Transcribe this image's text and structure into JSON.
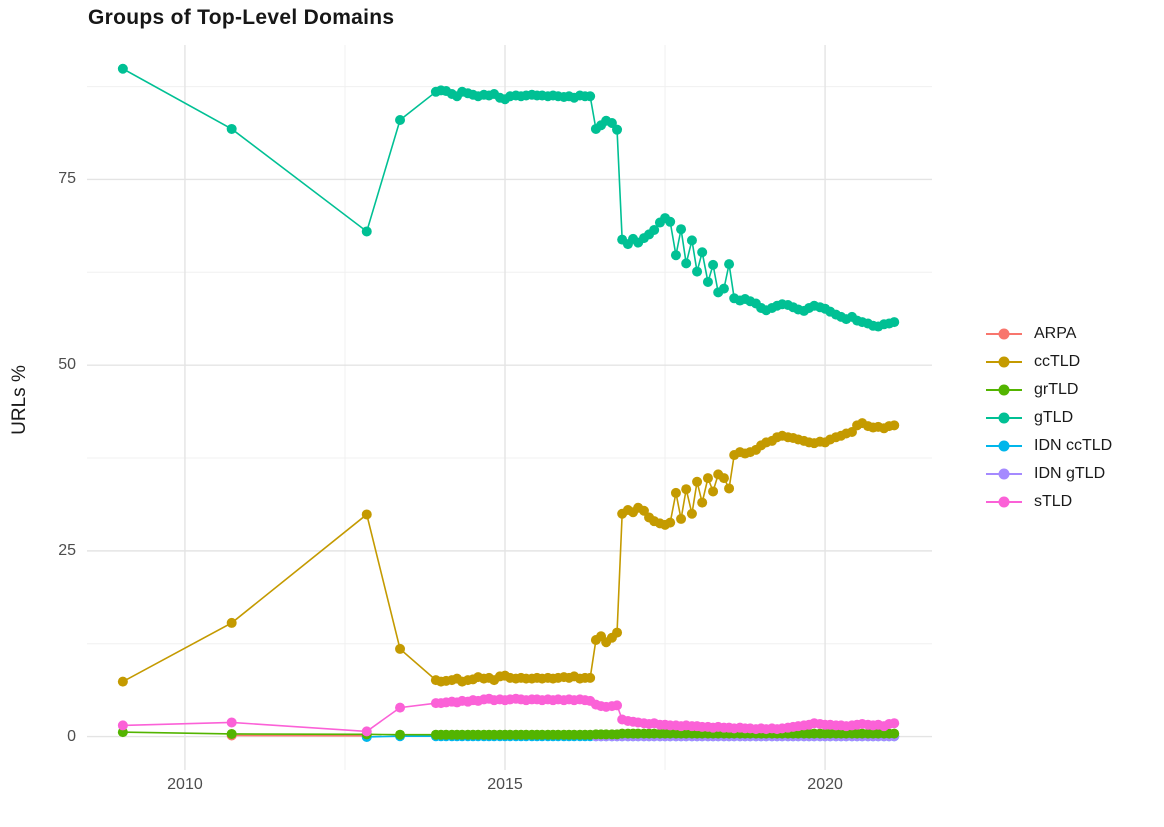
{
  "chart_data": {
    "type": "line",
    "title": "Groups of Top-Level Domains",
    "xlabel": "",
    "ylabel": "URLs %",
    "grid": true,
    "legend_position": "right",
    "x_axis": {
      "ticks": [
        2010,
        2015,
        2020
      ],
      "tick_labels": [
        "2010",
        "2015",
        "2020"
      ],
      "minor_ticks": [
        2012.5,
        2017.5
      ],
      "range": [
        2008.47,
        2021.67
      ]
    },
    "y_axis": {
      "ticks": [
        0,
        25,
        50,
        75
      ],
      "tick_labels": [
        "0",
        "25",
        "50",
        "75"
      ],
      "minor_ticks": [
        12.5,
        37.5,
        62.5,
        87.5
      ],
      "range": [
        -4.5,
        93.1
      ]
    },
    "colors": {
      "major_grid": "#e4e4e4",
      "minor_grid": "#f0f0f0",
      "tick_text": "#4d4d4d",
      "title_text": "#171717"
    },
    "draw_order": [
      "ARPA",
      "ccTLD",
      "IDN ccTLD",
      "IDN gTLD",
      "grTLD",
      "gTLD",
      "sTLD"
    ],
    "series": [
      {
        "name": "ARPA",
        "color": "#F8766D",
        "x": [
          2010.73,
          2012.84
        ],
        "y": [
          0.15,
          0.1
        ]
      },
      {
        "name": "ccTLD",
        "color": "#C49A00",
        "x": [
          2009.03,
          2010.73,
          2012.84,
          2013.36,
          2013.92,
          2014,
          2014.08,
          2014.17,
          2014.25,
          2014.33,
          2014.42,
          2014.5,
          2014.58,
          2014.67,
          2014.75,
          2014.83,
          2014.92,
          2015,
          2015.08,
          2015.17,
          2015.25,
          2015.33,
          2015.42,
          2015.5,
          2015.58,
          2015.67,
          2015.75,
          2015.83,
          2015.92,
          2016,
          2016.08,
          2016.17,
          2016.25,
          2016.33,
          2016.42,
          2016.5,
          2016.58,
          2016.67,
          2016.75,
          2016.83,
          2016.92,
          2017,
          2017.08,
          2017.17,
          2017.25,
          2017.33,
          2017.42,
          2017.5,
          2017.58,
          2017.67,
          2017.75,
          2017.83,
          2017.92,
          2018,
          2018.08,
          2018.17,
          2018.25,
          2018.33,
          2018.42,
          2018.5,
          2018.58,
          2018.67,
          2018.75,
          2018.83,
          2018.92,
          2019,
          2019.08,
          2019.17,
          2019.25,
          2019.33,
          2019.42,
          2019.5,
          2019.58,
          2019.67,
          2019.75,
          2019.83,
          2019.92,
          2020,
          2020.08,
          2020.17,
          2020.25,
          2020.33,
          2020.42,
          2020.5,
          2020.58,
          2020.67,
          2020.75,
          2020.83,
          2020.92,
          2021,
          2021.08
        ],
        "y": [
          7.4,
          15.3,
          29.9,
          11.8,
          7.6,
          7.4,
          7.5,
          7.6,
          7.8,
          7.4,
          7.6,
          7.7,
          8.0,
          7.8,
          7.9,
          7.6,
          8.1,
          8.2,
          7.9,
          7.8,
          7.9,
          7.8,
          7.8,
          7.9,
          7.8,
          7.9,
          7.8,
          7.9,
          8.0,
          7.9,
          8.1,
          7.8,
          7.9,
          7.9,
          13.0,
          13.5,
          12.7,
          13.3,
          14.0,
          30.0,
          30.5,
          30.2,
          30.8,
          30.4,
          29.5,
          29.0,
          28.7,
          28.5,
          28.8,
          32.8,
          29.3,
          33.3,
          30.0,
          34.3,
          31.5,
          34.8,
          33.0,
          35.3,
          34.8,
          33.4,
          37.9,
          38.3,
          38.1,
          38.3,
          38.6,
          39.2,
          39.6,
          39.8,
          40.3,
          40.5,
          40.3,
          40.2,
          40.0,
          39.8,
          39.6,
          39.5,
          39.7,
          39.6,
          40.0,
          40.3,
          40.5,
          40.8,
          41.0,
          41.9,
          42.2,
          41.8,
          41.6,
          41.7,
          41.5,
          41.8,
          41.9
        ]
      },
      {
        "name": "grTLD",
        "color": "#53B400",
        "x": [
          2009.03,
          2010.73,
          2012.84,
          2013.36,
          2013.92,
          2014,
          2014.08,
          2014.17,
          2014.25,
          2014.33,
          2014.42,
          2014.5,
          2014.58,
          2014.67,
          2014.75,
          2014.83,
          2014.92,
          2015,
          2015.08,
          2015.17,
          2015.25,
          2015.33,
          2015.42,
          2015.5,
          2015.58,
          2015.67,
          2015.75,
          2015.83,
          2015.92,
          2016,
          2016.08,
          2016.17,
          2016.25,
          2016.33,
          2016.42,
          2016.5,
          2016.58,
          2016.67,
          2016.75,
          2016.83,
          2016.92,
          2017,
          2017.08,
          2017.17,
          2017.25,
          2017.33,
          2017.42,
          2017.5,
          2017.58,
          2017.67,
          2017.75,
          2017.83,
          2017.92,
          2018,
          2018.08,
          2018.17,
          2018.25,
          2018.33,
          2018.42,
          2018.5,
          2018.58,
          2018.67,
          2018.75,
          2018.83,
          2018.92,
          2019,
          2019.08,
          2019.17,
          2019.25,
          2019.33,
          2019.42,
          2019.5,
          2019.58,
          2019.67,
          2019.75,
          2019.83,
          2019.92,
          2020,
          2020.08,
          2020.17,
          2020.25,
          2020.33,
          2020.42,
          2020.5,
          2020.58,
          2020.67,
          2020.75,
          2020.83,
          2020.92,
          2021,
          2021.08
        ],
        "y": [
          0.6,
          0.35,
          0.3,
          0.25,
          0.25,
          0.25,
          0.25,
          0.25,
          0.25,
          0.25,
          0.25,
          0.25,
          0.25,
          0.25,
          0.25,
          0.25,
          0.25,
          0.25,
          0.25,
          0.25,
          0.25,
          0.25,
          0.25,
          0.25,
          0.25,
          0.25,
          0.25,
          0.25,
          0.25,
          0.25,
          0.25,
          0.25,
          0.25,
          0.25,
          0.3,
          0.3,
          0.3,
          0.3,
          0.3,
          0.4,
          0.4,
          0.4,
          0.4,
          0.4,
          0.4,
          0.4,
          0.4,
          0.4,
          0.4,
          0.4,
          0.4,
          0.4,
          0.4,
          0.4,
          0.4,
          0.4,
          0.4,
          0.4,
          0.4,
          0.4,
          0.4,
          0.4,
          0.4,
          0.4,
          0.4,
          0.4,
          0.4,
          0.4,
          0.4,
          0.4,
          0.4,
          0.4,
          0.4,
          0.4,
          0.4,
          0.4,
          0.4,
          0.4,
          0.4,
          0.4,
          0.4,
          0.4,
          0.4,
          0.4,
          0.4,
          0.4,
          0.4,
          0.4,
          0.4,
          0.4,
          0.4
        ]
      },
      {
        "name": "gTLD",
        "color": "#00C094",
        "x": [
          2009.03,
          2010.73,
          2012.84,
          2013.36,
          2013.92,
          2014,
          2014.08,
          2014.17,
          2014.25,
          2014.33,
          2014.42,
          2014.5,
          2014.58,
          2014.67,
          2014.75,
          2014.83,
          2014.92,
          2015,
          2015.08,
          2015.17,
          2015.25,
          2015.33,
          2015.42,
          2015.5,
          2015.58,
          2015.67,
          2015.75,
          2015.83,
          2015.92,
          2016,
          2016.08,
          2016.17,
          2016.25,
          2016.33,
          2016.42,
          2016.5,
          2016.58,
          2016.67,
          2016.75,
          2016.83,
          2016.92,
          2017,
          2017.08,
          2017.17,
          2017.25,
          2017.33,
          2017.42,
          2017.5,
          2017.58,
          2017.67,
          2017.75,
          2017.83,
          2017.92,
          2018,
          2018.08,
          2018.17,
          2018.25,
          2018.33,
          2018.42,
          2018.5,
          2018.58,
          2018.67,
          2018.75,
          2018.83,
          2018.92,
          2019,
          2019.08,
          2019.17,
          2019.25,
          2019.33,
          2019.42,
          2019.5,
          2019.58,
          2019.67,
          2019.75,
          2019.83,
          2019.92,
          2020,
          2020.08,
          2020.17,
          2020.25,
          2020.33,
          2020.42,
          2020.5,
          2020.58,
          2020.67,
          2020.75,
          2020.83,
          2020.92,
          2021,
          2021.08
        ],
        "y": [
          89.9,
          81.8,
          68.0,
          83.0,
          86.8,
          87.0,
          86.9,
          86.5,
          86.2,
          86.8,
          86.6,
          86.4,
          86.2,
          86.4,
          86.3,
          86.5,
          86.0,
          85.8,
          86.2,
          86.3,
          86.2,
          86.3,
          86.4,
          86.3,
          86.3,
          86.2,
          86.3,
          86.2,
          86.1,
          86.2,
          86.0,
          86.3,
          86.2,
          86.2,
          81.8,
          82.3,
          82.9,
          82.6,
          81.7,
          66.9,
          66.3,
          67.0,
          66.5,
          67.1,
          67.6,
          68.2,
          69.2,
          69.8,
          69.3,
          64.8,
          68.3,
          63.7,
          66.8,
          62.6,
          65.2,
          61.2,
          63.5,
          59.8,
          60.3,
          63.6,
          59.0,
          58.7,
          58.9,
          58.6,
          58.3,
          57.7,
          57.4,
          57.7,
          58.0,
          58.2,
          58.1,
          57.8,
          57.5,
          57.3,
          57.7,
          58.0,
          57.8,
          57.6,
          57.2,
          56.8,
          56.5,
          56.2,
          56.5,
          56.0,
          55.8,
          55.6,
          55.3,
          55.2,
          55.5,
          55.6,
          55.8
        ]
      },
      {
        "name": "IDN ccTLD",
        "color": "#00B6EB",
        "x": [
          2012.84,
          2013.36,
          2013.92,
          2014,
          2014.08,
          2014.17,
          2014.25,
          2014.33,
          2014.42,
          2014.5,
          2014.58,
          2014.67,
          2014.75,
          2014.83,
          2014.92,
          2015,
          2015.08,
          2015.17,
          2015.25,
          2015.33,
          2015.42,
          2015.5,
          2015.58,
          2015.67,
          2015.75,
          2015.83,
          2015.92,
          2016,
          2016.08,
          2016.17,
          2016.25,
          2016.33,
          2016.42,
          2016.5,
          2016.58,
          2016.67,
          2016.75,
          2016.83,
          2016.92,
          2017,
          2017.08,
          2017.17,
          2017.25,
          2017.33,
          2017.42,
          2017.5,
          2017.58,
          2017.67,
          2017.75,
          2017.83,
          2017.92,
          2018,
          2018.08,
          2018.17,
          2018.25,
          2018.33,
          2018.42,
          2018.5,
          2018.58,
          2018.67,
          2018.75,
          2018.83,
          2018.92,
          2019,
          2019.08,
          2019.17,
          2019.25,
          2019.33,
          2019.42,
          2019.5,
          2019.58,
          2019.67,
          2019.75,
          2019.83,
          2019.92,
          2020,
          2020.08,
          2020.17,
          2020.25,
          2020.33,
          2020.42,
          2020.5,
          2020.58,
          2020.67,
          2020.75,
          2020.83,
          2020.92,
          2021,
          2021.08
        ],
        "y": [
          -0.05,
          0.05,
          0.05,
          0.05,
          0.05,
          0.05,
          0.05,
          0.05,
          0.05,
          0.05,
          0.05,
          0.05,
          0.05,
          0.05,
          0.05,
          0.05,
          0.05,
          0.05,
          0.05,
          0.05,
          0.05,
          0.05,
          0.05,
          0.05,
          0.05,
          0.05,
          0.05,
          0.05,
          0.05,
          0.05,
          0.05,
          0.05,
          0.05,
          0.05,
          0.05,
          0.05,
          0.05,
          0.05,
          0.05,
          0.05,
          0.05,
          0.05,
          0.05,
          0.05,
          0.05,
          0.05,
          0.05,
          0.05,
          0.05,
          0.05,
          0.05,
          0.05,
          0.05,
          0.05,
          0.05,
          0.05,
          0.05,
          0.05,
          0.05,
          0.05,
          0.05,
          0.05,
          0.05,
          0.05,
          0.05,
          0.05,
          0.05,
          0.05,
          0.05,
          0.05,
          0.05,
          0.05,
          0.05,
          0.05,
          0.05,
          0.05,
          0.05,
          0.05,
          0.05,
          0.05,
          0.05,
          0.05,
          0.05,
          0.05,
          0.05,
          0.05,
          0.05,
          0.05,
          0.05
        ]
      },
      {
        "name": "IDN gTLD",
        "color": "#A58AFF",
        "x": [
          2016.42,
          2016.5,
          2016.58,
          2016.67,
          2016.75,
          2016.83,
          2016.92,
          2017,
          2017.08,
          2017.17,
          2017.25,
          2017.33,
          2017.42,
          2017.5,
          2017.58,
          2017.67,
          2017.75,
          2017.83,
          2017.92,
          2018,
          2018.08,
          2018.17,
          2018.25,
          2018.33,
          2018.42,
          2018.5,
          2018.58,
          2018.67,
          2018.75,
          2018.83,
          2018.92,
          2019,
          2019.08,
          2019.17,
          2019.25,
          2019.33,
          2019.42,
          2019.5,
          2019.58,
          2019.67,
          2019.75,
          2019.83,
          2019.92,
          2020,
          2020.08,
          2020.17,
          2020.25,
          2020.33,
          2020.42,
          2020.5,
          2020.58,
          2020.67,
          2020.75,
          2020.83,
          2020.92,
          2021,
          2021.08
        ],
        "y": [
          0.05,
          0.05,
          0.05,
          0.05,
          0.05,
          0.05,
          0.05,
          0.05,
          0.05,
          0.05,
          0.05,
          0.05,
          0.05,
          0.05,
          0.05,
          0.05,
          0.05,
          0.05,
          0.05,
          0.05,
          0.05,
          0.05,
          0.05,
          0.05,
          0.05,
          0.05,
          0.05,
          0.05,
          0.05,
          0.05,
          0.05,
          0.05,
          0.05,
          0.05,
          0.05,
          0.05,
          0.05,
          0.05,
          0.05,
          0.05,
          0.05,
          0.05,
          0.05,
          0.05,
          0.05,
          0.05,
          0.05,
          0.05,
          0.05,
          0.05,
          0.05,
          0.05,
          0.05,
          0.05,
          0.05,
          0.05,
          0.05
        ]
      },
      {
        "name": "sTLD",
        "color": "#FB61D7",
        "x": [
          2009.03,
          2010.73,
          2012.84,
          2013.36,
          2013.92,
          2014,
          2014.08,
          2014.17,
          2014.25,
          2014.33,
          2014.42,
          2014.5,
          2014.58,
          2014.67,
          2014.75,
          2014.83,
          2014.92,
          2015,
          2015.08,
          2015.17,
          2015.25,
          2015.33,
          2015.42,
          2015.5,
          2015.58,
          2015.67,
          2015.75,
          2015.83,
          2015.92,
          2016,
          2016.08,
          2016.17,
          2016.25,
          2016.33,
          2016.42,
          2016.5,
          2016.58,
          2016.67,
          2016.75,
          2016.83,
          2016.92,
          2017,
          2017.08,
          2017.17,
          2017.25,
          2017.33,
          2017.42,
          2017.5,
          2017.58,
          2017.67,
          2017.75,
          2017.83,
          2017.92,
          2018,
          2018.08,
          2018.17,
          2018.25,
          2018.33,
          2018.42,
          2018.5,
          2018.58,
          2018.67,
          2018.75,
          2018.83,
          2018.92,
          2019,
          2019.08,
          2019.17,
          2019.25,
          2019.33,
          2019.42,
          2019.5,
          2019.58,
          2019.67,
          2019.75,
          2019.83,
          2019.92,
          2020,
          2020.08,
          2020.17,
          2020.25,
          2020.33,
          2020.42,
          2020.5,
          2020.58,
          2020.67,
          2020.75,
          2020.83,
          2020.92,
          2021,
          2021.08
        ],
        "y": [
          1.5,
          1.9,
          0.7,
          3.9,
          4.5,
          4.5,
          4.6,
          4.7,
          4.6,
          4.8,
          4.7,
          4.9,
          4.8,
          5.0,
          5.1,
          4.9,
          5.0,
          4.9,
          5.0,
          5.1,
          5.0,
          4.9,
          5.0,
          5.0,
          4.9,
          5.0,
          4.9,
          5.0,
          4.9,
          5.0,
          4.9,
          5.0,
          4.9,
          4.8,
          4.3,
          4.1,
          4.0,
          4.1,
          4.2,
          2.3,
          2.1,
          2.0,
          1.9,
          1.8,
          1.7,
          1.8,
          1.6,
          1.6,
          1.5,
          1.5,
          1.4,
          1.5,
          1.4,
          1.4,
          1.3,
          1.3,
          1.2,
          1.3,
          1.2,
          1.2,
          1.1,
          1.2,
          1.1,
          1.1,
          1.0,
          1.1,
          1.0,
          1.1,
          1.0,
          1.1,
          1.2,
          1.3,
          1.4,
          1.5,
          1.6,
          1.8,
          1.7,
          1.6,
          1.6,
          1.5,
          1.5,
          1.4,
          1.5,
          1.6,
          1.7,
          1.6,
          1.5,
          1.6,
          1.4,
          1.7,
          1.8
        ]
      }
    ]
  }
}
